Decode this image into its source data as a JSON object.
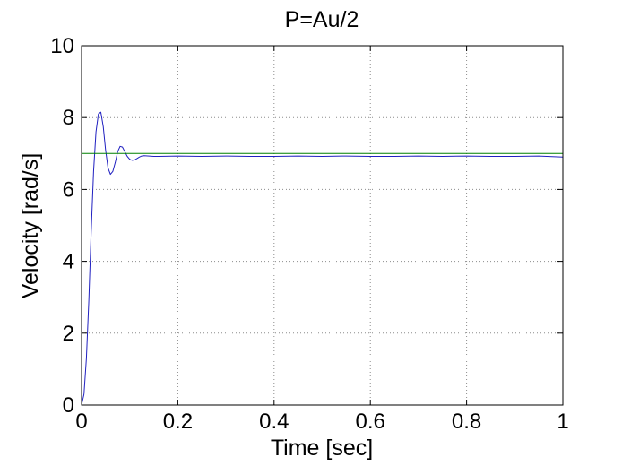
{
  "chart_data": {
    "type": "line",
    "title": "P=Au/2",
    "xlabel": "Time [sec]",
    "ylabel": "Velocity [rad/s]",
    "xlim": [
      0,
      1
    ],
    "ylim": [
      0,
      10
    ],
    "xticks": [
      0,
      0.2,
      0.4,
      0.6,
      0.8,
      1
    ],
    "yticks": [
      0,
      2,
      4,
      6,
      8,
      10
    ],
    "xtick_labels": [
      "0",
      "0.2",
      "0.4",
      "0.6",
      "0.8",
      "1"
    ],
    "ytick_labels": [
      "0",
      "2",
      "4",
      "6",
      "8",
      "10"
    ],
    "grid": true,
    "legend": "none",
    "series": [
      {
        "color": "#2020c0",
        "x": [
          0,
          0.005,
          0.01,
          0.015,
          0.02,
          0.025,
          0.03,
          0.035,
          0.04,
          0.045,
          0.05,
          0.055,
          0.06,
          0.065,
          0.07,
          0.075,
          0.08,
          0.085,
          0.09,
          0.095,
          0.1,
          0.105,
          0.11,
          0.115,
          0.12,
          0.125,
          0.13,
          0.14,
          0.15,
          0.16,
          0.2,
          0.25,
          0.3,
          0.35,
          0.4,
          0.45,
          0.5,
          0.55,
          0.6,
          0.65,
          0.7,
          0.75,
          0.8,
          0.85,
          0.9,
          0.95,
          1
        ],
        "y": [
          0,
          0.3,
          1.3,
          2.9,
          4.8,
          6.5,
          7.6,
          8.1,
          8.15,
          7.75,
          7.1,
          6.6,
          6.42,
          6.5,
          6.75,
          7.05,
          7.2,
          7.18,
          7.05,
          6.92,
          6.84,
          6.81,
          6.82,
          6.86,
          6.9,
          6.93,
          6.94,
          6.93,
          6.92,
          6.92,
          6.93,
          6.92,
          6.93,
          6.92,
          6.92,
          6.93,
          6.92,
          6.93,
          6.92,
          6.92,
          6.93,
          6.92,
          6.93,
          6.92,
          6.92,
          6.93,
          6.9
        ]
      },
      {
        "color": "#008000",
        "x": [
          0,
          1
        ],
        "y": [
          7,
          7
        ]
      }
    ]
  }
}
